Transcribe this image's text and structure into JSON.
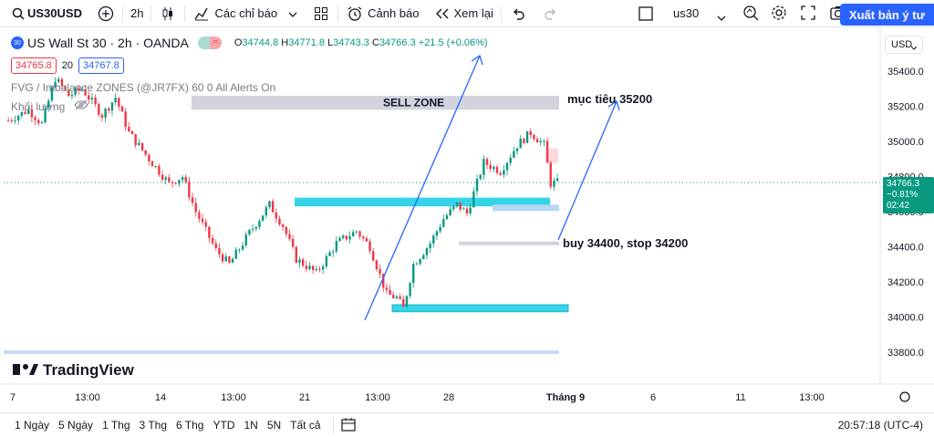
{
  "toolbar": {
    "symbol": "US30USD",
    "interval": "2h",
    "indicators_label": "Các chỉ báo",
    "alert_label": "Cảnh báo",
    "replay_label": "Xem lại",
    "layout_name": "us30",
    "publish_label": "Xuất bản ý tư"
  },
  "legend": {
    "badge": "30",
    "title": "US Wall St 30 · 2h · OANDA",
    "open_label": "O",
    "open": "34744.8",
    "high_label": "H",
    "high": "34771.8",
    "low_label": "L",
    "low": "34743.3",
    "close_label": "C",
    "close": "34766.3",
    "change": "+21.5 (+0.06%)",
    "sell_price": "34765.8",
    "spread": "20",
    "buy_price": "34767.8",
    "indicator": "FVG / Imbalance ZONES (@JR7FX) 60 0 All Alerts On",
    "volume": "Khối lượng"
  },
  "currency": "USD",
  "last_price": {
    "price": "34766.3",
    "change": "−0.81%",
    "countdown": "02:42"
  },
  "annotations": {
    "sell_zone": "SELL ZONE",
    "target": "mục tiêu 35200",
    "buy": "buy 34400, stop 34200"
  },
  "watermark": "TradingView",
  "price_axis": [
    "35400.0",
    "35200.0",
    "35000.0",
    "34800.0",
    "34600.0",
    "34400.0",
    "34200.0",
    "34000.0",
    "33800.0"
  ],
  "time_axis": [
    "7",
    "13:00",
    "14",
    "13:00",
    "21",
    "13:00",
    "28",
    "Tháng 9",
    "6",
    "11",
    "13:00"
  ],
  "ranges": [
    "1 Ngày",
    "5 Ngày",
    "1 Thg",
    "3 Thg",
    "6 Thg",
    "YTD",
    "1N",
    "5N",
    "Tất cả"
  ],
  "clock": "20:57:18 (UTC-4)",
  "colors": {
    "up": "#089981",
    "down": "#f23645",
    "accent": "#2962ff",
    "zone_cyan": "#35d4e8",
    "zone_gray": "#d1d4dc"
  },
  "chart_data": {
    "type": "candlestick",
    "price_range": [
      33700,
      35500
    ],
    "anchors": [
      {
        "i": 0,
        "p": 35120
      },
      {
        "i": 6,
        "p": 35180
      },
      {
        "i": 10,
        "p": 35100
      },
      {
        "i": 14,
        "p": 35360
      },
      {
        "i": 18,
        "p": 35260
      },
      {
        "i": 22,
        "p": 35300
      },
      {
        "i": 28,
        "p": 35150
      },
      {
        "i": 32,
        "p": 35250
      },
      {
        "i": 36,
        "p": 35050
      },
      {
        "i": 42,
        "p": 34900
      },
      {
        "i": 48,
        "p": 34760
      },
      {
        "i": 52,
        "p": 34800
      },
      {
        "i": 56,
        "p": 34600
      },
      {
        "i": 62,
        "p": 34380
      },
      {
        "i": 66,
        "p": 34300
      },
      {
        "i": 72,
        "p": 34480
      },
      {
        "i": 78,
        "p": 34640
      },
      {
        "i": 82,
        "p": 34520
      },
      {
        "i": 86,
        "p": 34330
      },
      {
        "i": 92,
        "p": 34250
      },
      {
        "i": 98,
        "p": 34420
      },
      {
        "i": 104,
        "p": 34490
      },
      {
        "i": 108,
        "p": 34400
      },
      {
        "i": 113,
        "p": 34130
      },
      {
        "i": 116,
        "p": 34110
      },
      {
        "i": 118,
        "p": 34050
      },
      {
        "i": 121,
        "p": 34300
      },
      {
        "i": 126,
        "p": 34420
      },
      {
        "i": 130,
        "p": 34560
      },
      {
        "i": 134,
        "p": 34640
      },
      {
        "i": 137,
        "p": 34590
      },
      {
        "i": 142,
        "p": 34880
      },
      {
        "i": 147,
        "p": 34830
      },
      {
        "i": 152,
        "p": 34980
      },
      {
        "i": 156,
        "p": 35050
      },
      {
        "i": 160,
        "p": 34980
      },
      {
        "i": 162,
        "p": 34760
      },
      {
        "i": 164,
        "p": 34766
      }
    ],
    "zones": [
      {
        "label_key": "sell_zone",
        "from": 35180,
        "to": 35260,
        "color": "gray"
      },
      {
        "from": 34630,
        "to": 34680,
        "color": "cyan"
      },
      {
        "from": 34030,
        "to": 34070,
        "color": "cyan"
      },
      {
        "from": 34410,
        "to": 34430,
        "color": "gray-line"
      }
    ]
  }
}
